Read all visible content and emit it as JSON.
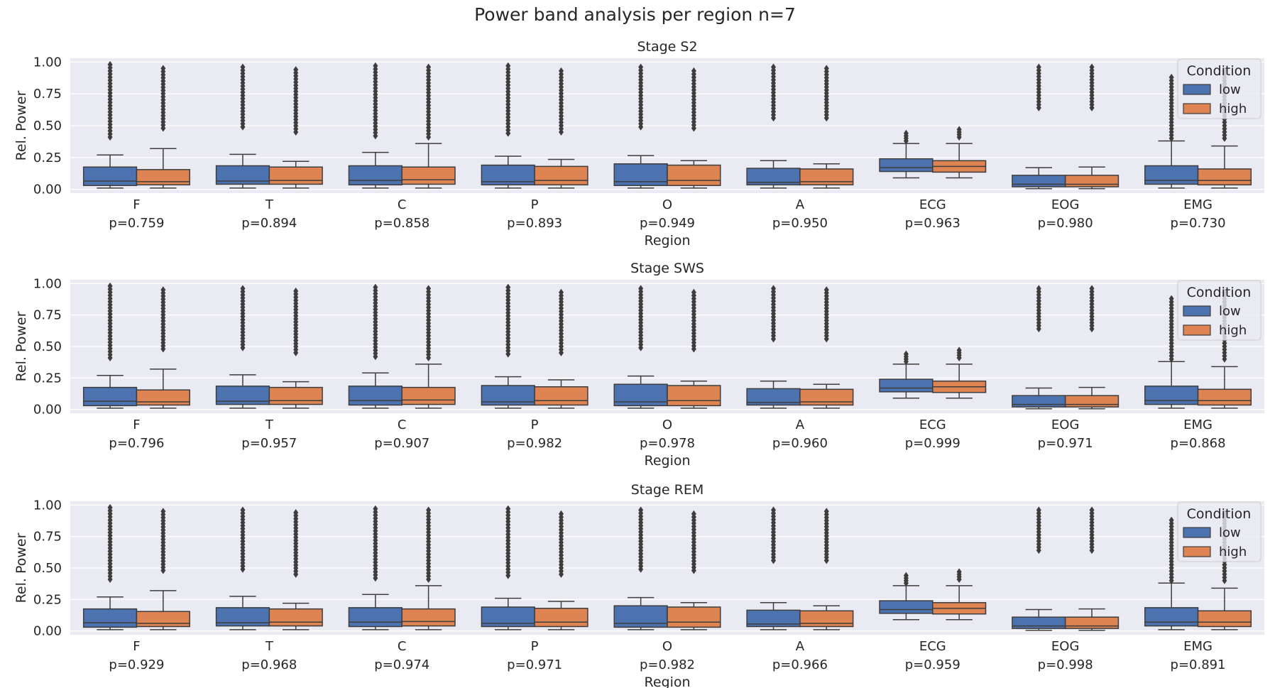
{
  "figure": {
    "title": "Power band analysis per region n=7"
  },
  "chart_data": [
    {
      "type": "box",
      "title": "Stage S2",
      "xlabel": "Region",
      "ylabel": "Rel. Power",
      "ylim": [
        -0.03,
        1.03
      ],
      "yticks": [
        "0.00",
        "0.25",
        "0.50",
        "0.75",
        "1.00"
      ],
      "legend": {
        "title": "Condition",
        "placement": "upper right",
        "entries": [
          "low",
          "high"
        ]
      },
      "grid": true,
      "colors": {
        "low": "#4c72b0",
        "high": "#dd8452",
        "background": "#eaeaf2"
      },
      "categories": [
        "F",
        "T",
        "C",
        "P",
        "O",
        "A",
        "ECG",
        "EOG",
        "EMG"
      ],
      "pvalues": [
        "p=0.759",
        "p=0.894",
        "p=0.858",
        "p=0.893",
        "p=0.949",
        "p=0.950",
        "p=0.963",
        "p=0.980",
        "p=0.730"
      ],
      "series": [
        {
          "name": "low",
          "whisker_low": [
            0.01,
            0.01,
            0.01,
            0.01,
            0.01,
            0.01,
            0.09,
            0.005,
            0.01
          ],
          "q1": [
            0.03,
            0.04,
            0.035,
            0.035,
            0.03,
            0.035,
            0.14,
            0.02,
            0.04
          ],
          "median": [
            0.065,
            0.065,
            0.07,
            0.06,
            0.06,
            0.055,
            0.17,
            0.04,
            0.07
          ],
          "q3": [
            0.175,
            0.185,
            0.185,
            0.19,
            0.2,
            0.165,
            0.24,
            0.11,
            0.185
          ],
          "whisker_high": [
            0.27,
            0.275,
            0.29,
            0.26,
            0.265,
            0.225,
            0.36,
            0.17,
            0.38
          ],
          "outlier_range": [
            [
              0.41,
              0.98
            ],
            [
              0.49,
              0.96
            ],
            [
              0.42,
              0.97
            ],
            [
              0.44,
              0.97
            ],
            [
              0.49,
              0.96
            ],
            [
              0.56,
              0.96
            ],
            [
              0.38,
              0.44
            ],
            [
              0.64,
              0.96
            ],
            [
              0.4,
              0.88
            ]
          ]
        },
        {
          "name": "high",
          "whisker_low": [
            0.01,
            0.01,
            0.01,
            0.01,
            0.01,
            0.01,
            0.09,
            0.005,
            0.01
          ],
          "q1": [
            0.035,
            0.04,
            0.04,
            0.035,
            0.03,
            0.035,
            0.135,
            0.02,
            0.035
          ],
          "median": [
            0.06,
            0.07,
            0.075,
            0.07,
            0.07,
            0.06,
            0.18,
            0.04,
            0.07
          ],
          "q3": [
            0.155,
            0.175,
            0.175,
            0.18,
            0.19,
            0.16,
            0.225,
            0.11,
            0.16
          ],
          "whisker_high": [
            0.32,
            0.22,
            0.36,
            0.235,
            0.225,
            0.2,
            0.36,
            0.175,
            0.34
          ],
          "outlier_range": [
            [
              0.48,
              0.95
            ],
            [
              0.45,
              0.94
            ],
            [
              0.41,
              0.96
            ],
            [
              0.45,
              0.93
            ],
            [
              0.48,
              0.93
            ],
            [
              0.56,
              0.95
            ],
            [
              0.41,
              0.47
            ],
            [
              0.64,
              0.96
            ],
            [
              0.4,
              0.93
            ]
          ]
        }
      ]
    },
    {
      "type": "box",
      "title": "Stage SWS",
      "xlabel": "Region",
      "ylabel": "Rel. Power",
      "ylim": [
        -0.03,
        1.03
      ],
      "yticks": [
        "0.00",
        "0.25",
        "0.50",
        "0.75",
        "1.00"
      ],
      "legend": {
        "title": "Condition",
        "placement": "upper right",
        "entries": [
          "low",
          "high"
        ]
      },
      "grid": true,
      "colors": {
        "low": "#4c72b0",
        "high": "#dd8452",
        "background": "#eaeaf2"
      },
      "categories": [
        "F",
        "T",
        "C",
        "P",
        "O",
        "A",
        "ECG",
        "EOG",
        "EMG"
      ],
      "pvalues": [
        "p=0.796",
        "p=0.957",
        "p=0.907",
        "p=0.982",
        "p=0.978",
        "p=0.960",
        "p=0.999",
        "p=0.971",
        "p=0.868"
      ],
      "series": [
        {
          "name": "low",
          "whisker_low": [
            0.01,
            0.01,
            0.01,
            0.01,
            0.01,
            0.01,
            0.09,
            0.005,
            0.01
          ],
          "q1": [
            0.03,
            0.04,
            0.035,
            0.035,
            0.03,
            0.035,
            0.14,
            0.02,
            0.04
          ],
          "median": [
            0.065,
            0.065,
            0.07,
            0.06,
            0.06,
            0.055,
            0.17,
            0.04,
            0.07
          ],
          "q3": [
            0.175,
            0.185,
            0.185,
            0.19,
            0.2,
            0.165,
            0.24,
            0.11,
            0.185
          ],
          "whisker_high": [
            0.27,
            0.275,
            0.29,
            0.26,
            0.265,
            0.225,
            0.36,
            0.17,
            0.38
          ],
          "outlier_range": [
            [
              0.41,
              0.98
            ],
            [
              0.49,
              0.96
            ],
            [
              0.42,
              0.97
            ],
            [
              0.44,
              0.97
            ],
            [
              0.49,
              0.96
            ],
            [
              0.56,
              0.96
            ],
            [
              0.38,
              0.44
            ],
            [
              0.64,
              0.96
            ],
            [
              0.4,
              0.88
            ]
          ]
        },
        {
          "name": "high",
          "whisker_low": [
            0.01,
            0.01,
            0.01,
            0.01,
            0.01,
            0.01,
            0.09,
            0.005,
            0.01
          ],
          "q1": [
            0.035,
            0.04,
            0.04,
            0.035,
            0.03,
            0.035,
            0.135,
            0.02,
            0.035
          ],
          "median": [
            0.06,
            0.07,
            0.075,
            0.07,
            0.07,
            0.06,
            0.18,
            0.04,
            0.07
          ],
          "q3": [
            0.155,
            0.175,
            0.175,
            0.18,
            0.19,
            0.16,
            0.225,
            0.11,
            0.16
          ],
          "whisker_high": [
            0.32,
            0.22,
            0.36,
            0.235,
            0.225,
            0.2,
            0.36,
            0.175,
            0.34
          ],
          "outlier_range": [
            [
              0.48,
              0.95
            ],
            [
              0.45,
              0.94
            ],
            [
              0.41,
              0.96
            ],
            [
              0.45,
              0.93
            ],
            [
              0.48,
              0.93
            ],
            [
              0.56,
              0.95
            ],
            [
              0.41,
              0.47
            ],
            [
              0.64,
              0.96
            ],
            [
              0.4,
              0.93
            ]
          ]
        }
      ]
    },
    {
      "type": "box",
      "title": "Stage REM",
      "xlabel": "Region",
      "ylabel": "Rel. Power",
      "ylim": [
        -0.03,
        1.03
      ],
      "yticks": [
        "0.00",
        "0.25",
        "0.50",
        "0.75",
        "1.00"
      ],
      "legend": {
        "title": "Condition",
        "placement": "upper right",
        "entries": [
          "low",
          "high"
        ]
      },
      "grid": true,
      "colors": {
        "low": "#4c72b0",
        "high": "#dd8452",
        "background": "#eaeaf2"
      },
      "categories": [
        "F",
        "T",
        "C",
        "P",
        "O",
        "A",
        "ECG",
        "EOG",
        "EMG"
      ],
      "pvalues": [
        "p=0.929",
        "p=0.968",
        "p=0.974",
        "p=0.971",
        "p=0.982",
        "p=0.966",
        "p=0.959",
        "p=0.998",
        "p=0.891"
      ],
      "series": [
        {
          "name": "low",
          "whisker_low": [
            0.01,
            0.01,
            0.01,
            0.01,
            0.01,
            0.01,
            0.09,
            0.005,
            0.01
          ],
          "q1": [
            0.03,
            0.04,
            0.035,
            0.035,
            0.03,
            0.035,
            0.14,
            0.02,
            0.04
          ],
          "median": [
            0.065,
            0.065,
            0.07,
            0.06,
            0.06,
            0.055,
            0.17,
            0.04,
            0.07
          ],
          "q3": [
            0.175,
            0.185,
            0.185,
            0.19,
            0.2,
            0.165,
            0.24,
            0.11,
            0.185
          ],
          "whisker_high": [
            0.27,
            0.275,
            0.29,
            0.26,
            0.265,
            0.225,
            0.36,
            0.17,
            0.38
          ],
          "outlier_range": [
            [
              0.41,
              0.98
            ],
            [
              0.49,
              0.96
            ],
            [
              0.42,
              0.97
            ],
            [
              0.44,
              0.97
            ],
            [
              0.49,
              0.96
            ],
            [
              0.56,
              0.96
            ],
            [
              0.38,
              0.44
            ],
            [
              0.64,
              0.96
            ],
            [
              0.4,
              0.88
            ]
          ]
        },
        {
          "name": "high",
          "whisker_low": [
            0.01,
            0.01,
            0.01,
            0.01,
            0.01,
            0.01,
            0.09,
            0.005,
            0.01
          ],
          "q1": [
            0.035,
            0.04,
            0.04,
            0.035,
            0.03,
            0.035,
            0.135,
            0.02,
            0.035
          ],
          "median": [
            0.06,
            0.07,
            0.075,
            0.07,
            0.07,
            0.06,
            0.18,
            0.04,
            0.07
          ],
          "q3": [
            0.155,
            0.175,
            0.175,
            0.18,
            0.19,
            0.16,
            0.225,
            0.11,
            0.16
          ],
          "whisker_high": [
            0.32,
            0.22,
            0.36,
            0.235,
            0.225,
            0.2,
            0.36,
            0.175,
            0.34
          ],
          "outlier_range": [
            [
              0.48,
              0.95
            ],
            [
              0.45,
              0.94
            ],
            [
              0.41,
              0.96
            ],
            [
              0.45,
              0.93
            ],
            [
              0.48,
              0.93
            ],
            [
              0.56,
              0.95
            ],
            [
              0.41,
              0.47
            ],
            [
              0.64,
              0.96
            ],
            [
              0.4,
              0.93
            ]
          ]
        }
      ]
    }
  ]
}
